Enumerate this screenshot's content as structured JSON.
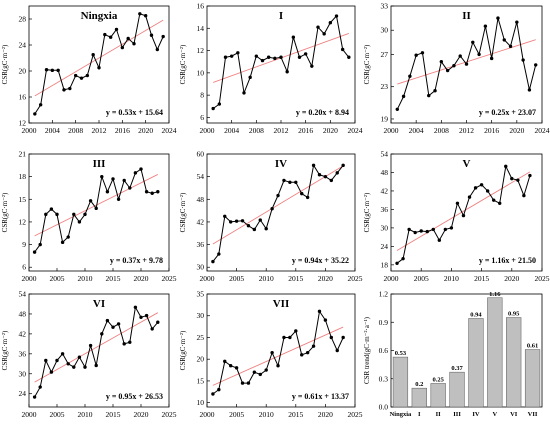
{
  "ylabel": "CSR(gC·m⁻²)",
  "trend_ylabel": "CSR trend(gC·m⁻²·a⁻¹)",
  "colors": {
    "line": "#000000",
    "fit": "#f08080",
    "bar": "#bfbfbf"
  },
  "chart_data": [
    {
      "type": "line",
      "title": "Ningxia",
      "x": [
        2001,
        2002,
        2003,
        2004,
        2005,
        2006,
        2007,
        2008,
        2009,
        2010,
        2011,
        2012,
        2013,
        2014,
        2015,
        2016,
        2017,
        2018,
        2019,
        2020,
        2021,
        2022,
        2023
      ],
      "values": [
        13.4,
        14.8,
        20.2,
        20.1,
        20.1,
        17.1,
        17.3,
        19.3,
        18.9,
        19.3,
        22.5,
        20.5,
        25.6,
        25.2,
        26.4,
        23.6,
        25.0,
        24.2,
        28.8,
        28.5,
        25.5,
        23.3,
        25.3
      ],
      "fit": {
        "slope": 0.53,
        "intercept": 15.64
      },
      "equation": "y = 0.53x + 15.64",
      "xticks": [
        "2000",
        "2004",
        "2008",
        "2012",
        "2016",
        "2020",
        "2024"
      ],
      "xtick_values": [
        2000,
        2004,
        2008,
        2012,
        2016,
        2020,
        2024
      ],
      "yticks": [
        "12",
        "16",
        "20",
        "24",
        "28"
      ],
      "ytick_values": [
        12,
        16,
        20,
        24,
        28
      ],
      "ylim": [
        12,
        30
      ],
      "xlim": [
        2000,
        2024
      ]
    },
    {
      "type": "line",
      "title": "I",
      "x": [
        2001,
        2002,
        2003,
        2004,
        2005,
        2006,
        2007,
        2008,
        2009,
        2010,
        2011,
        2012,
        2013,
        2014,
        2015,
        2016,
        2017,
        2018,
        2019,
        2020,
        2021,
        2022,
        2023
      ],
      "values": [
        6.8,
        7.2,
        11.4,
        11.5,
        11.8,
        8.2,
        9.6,
        11.5,
        11.1,
        11.4,
        11.3,
        11.4,
        10.1,
        13.2,
        11.4,
        11.7,
        10.6,
        14.1,
        13.5,
        14.5,
        15.1,
        12.1,
        11.4
      ],
      "fit": {
        "slope": 0.2,
        "intercept": 8.94
      },
      "equation": "y = 0.20x + 8.94",
      "xticks": [
        "2000",
        "2004",
        "2008",
        "2012",
        "2016",
        "2020",
        "2024"
      ],
      "xtick_values": [
        2000,
        2004,
        2008,
        2012,
        2016,
        2020,
        2024
      ],
      "yticks": [
        "6",
        "8",
        "10",
        "12",
        "14",
        "16"
      ],
      "ytick_values": [
        6,
        8,
        10,
        12,
        14,
        16
      ],
      "ylim": [
        5.5,
        16
      ],
      "xlim": [
        2000,
        2024
      ]
    },
    {
      "type": "line",
      "title": "II",
      "x": [
        2001,
        2002,
        2003,
        2004,
        2005,
        2006,
        2007,
        2008,
        2009,
        2010,
        2011,
        2012,
        2013,
        2014,
        2015,
        2016,
        2017,
        2018,
        2019,
        2020,
        2021,
        2022,
        2023
      ],
      "values": [
        20.2,
        21.8,
        24.3,
        26.9,
        27.2,
        21.9,
        22.5,
        26.1,
        25.0,
        25.6,
        26.8,
        25.8,
        28.5,
        27.0,
        30.5,
        26.5,
        31.5,
        28.8,
        28.0,
        31.0,
        26.3,
        22.6,
        25.7
      ],
      "fit": {
        "slope": 0.25,
        "intercept": 23.07
      },
      "equation": "y = 0.25x + 23.07",
      "xticks": [
        "2000",
        "2004",
        "2008",
        "2012",
        "2016",
        "2020",
        "2024"
      ],
      "xtick_values": [
        2000,
        2004,
        2008,
        2012,
        2016,
        2020,
        2024
      ],
      "yticks": [
        "19",
        "23",
        "27",
        "30",
        "33"
      ],
      "ytick_values": [
        19,
        23,
        27,
        30,
        33
      ],
      "ylim": [
        18.5,
        33
      ],
      "xlim": [
        2000,
        2024
      ]
    },
    {
      "type": "line",
      "title": "III",
      "x": [
        2001,
        2002,
        2003,
        2004,
        2005,
        2006,
        2007,
        2008,
        2009,
        2010,
        2011,
        2012,
        2013,
        2014,
        2015,
        2016,
        2017,
        2018,
        2019,
        2020,
        2021,
        2022,
        2023
      ],
      "values": [
        8.0,
        9.0,
        13.0,
        13.7,
        13.0,
        9.3,
        10.0,
        13.0,
        12.0,
        13.0,
        14.8,
        13.8,
        18.0,
        16.0,
        17.7,
        15.0,
        17.5,
        16.5,
        18.5,
        19.0,
        16.0,
        15.8,
        16.0
      ],
      "fit": {
        "slope": 0.37,
        "intercept": 9.78
      },
      "equation": "y = 0.37x + 9.78",
      "xticks": [
        "2000",
        "2005",
        "2010",
        "2015",
        "2020",
        "2025"
      ],
      "xtick_values": [
        2000,
        2005,
        2010,
        2015,
        2020,
        2025
      ],
      "yticks": [
        "6",
        "9",
        "12",
        "15",
        "18",
        "21"
      ],
      "ytick_values": [
        6,
        9,
        12,
        15,
        18,
        21
      ],
      "ylim": [
        5.5,
        21
      ],
      "xlim": [
        2000,
        2025
      ]
    },
    {
      "type": "line",
      "title": "IV",
      "x": [
        2001,
        2002,
        2003,
        2004,
        2005,
        2006,
        2007,
        2008,
        2009,
        2010,
        2011,
        2012,
        2013,
        2014,
        2015,
        2016,
        2017,
        2018,
        2019,
        2020,
        2021,
        2022,
        2023
      ],
      "values": [
        31.5,
        33.5,
        43.5,
        42.0,
        42.2,
        42.3,
        41.0,
        40.0,
        42.5,
        40.2,
        45.5,
        49.0,
        53.0,
        52.5,
        52.5,
        49.5,
        48.5,
        57.0,
        54.5,
        54.0,
        53.0,
        55.0,
        57.0
      ],
      "fit": {
        "slope": 0.94,
        "intercept": 35.22
      },
      "equation": "y = 0.94x + 35.22",
      "xticks": [
        "2000",
        "2005",
        "2010",
        "2015",
        "2020",
        "2025"
      ],
      "xtick_values": [
        2000,
        2005,
        2010,
        2015,
        2020,
        2025
      ],
      "yticks": [
        "30",
        "36",
        "42",
        "48",
        "54",
        "60"
      ],
      "ytick_values": [
        30,
        36,
        42,
        48,
        54,
        60
      ],
      "ylim": [
        29,
        60
      ],
      "xlim": [
        2000,
        2025
      ]
    },
    {
      "type": "line",
      "title": "V",
      "x": [
        2001,
        2002,
        2003,
        2004,
        2005,
        2006,
        2007,
        2008,
        2009,
        2010,
        2011,
        2012,
        2013,
        2014,
        2015,
        2016,
        2017,
        2018,
        2019,
        2020,
        2021,
        2022,
        2023
      ],
      "values": [
        18.5,
        20.0,
        29.5,
        28.5,
        29.0,
        28.8,
        29.5,
        26.0,
        29.5,
        30.0,
        38.0,
        34.0,
        40.0,
        43.0,
        44.0,
        42.0,
        39.0,
        38.0,
        50.0,
        46.0,
        45.5,
        40.5,
        47.0
      ],
      "fit": {
        "slope": 1.16,
        "intercept": 21.5
      },
      "equation": "y = 1.16x + 21.50",
      "xticks": [
        "2000",
        "2005",
        "2010",
        "2015",
        "2020",
        "2025"
      ],
      "xtick_values": [
        2000,
        2005,
        2010,
        2015,
        2020,
        2025
      ],
      "yticks": [
        "18",
        "24",
        "30",
        "36",
        "42",
        "48",
        "54"
      ],
      "ytick_values": [
        18,
        24,
        30,
        36,
        42,
        48,
        54
      ],
      "ylim": [
        16,
        54
      ],
      "xlim": [
        2000,
        2025
      ]
    },
    {
      "type": "line",
      "title": "VI",
      "x": [
        2001,
        2002,
        2003,
        2004,
        2005,
        2006,
        2007,
        2008,
        2009,
        2010,
        2011,
        2012,
        2013,
        2014,
        2015,
        2016,
        2017,
        2018,
        2019,
        2020,
        2021,
        2022,
        2023
      ],
      "values": [
        23.0,
        26.0,
        34.0,
        30.5,
        34.0,
        36.0,
        33.0,
        32.0,
        35.0,
        32.0,
        38.5,
        32.5,
        42.0,
        46.0,
        44.0,
        45.0,
        39.0,
        39.5,
        50.0,
        47.0,
        47.5,
        43.5,
        45.5
      ],
      "fit": {
        "slope": 0.95,
        "intercept": 26.53
      },
      "equation": "y = 0.95x + 26.53",
      "xticks": [
        "2000",
        "2005",
        "2010",
        "2015",
        "2020",
        "2025"
      ],
      "xtick_values": [
        2000,
        2005,
        2010,
        2015,
        2020,
        2025
      ],
      "yticks": [
        "24",
        "30",
        "36",
        "42",
        "48",
        "54"
      ],
      "ytick_values": [
        24,
        30,
        36,
        42,
        48,
        54
      ],
      "ylim": [
        20,
        54
      ],
      "xlim": [
        2000,
        2025
      ]
    },
    {
      "type": "line",
      "title": "VII",
      "x": [
        2001,
        2002,
        2003,
        2004,
        2005,
        2006,
        2007,
        2008,
        2009,
        2010,
        2011,
        2012,
        2013,
        2014,
        2015,
        2016,
        2017,
        2018,
        2019,
        2020,
        2021,
        2022,
        2023
      ],
      "values": [
        12.0,
        13.0,
        19.5,
        18.5,
        18.0,
        14.5,
        14.5,
        17.0,
        16.5,
        17.5,
        21.5,
        18.5,
        25.0,
        25.0,
        26.5,
        21.0,
        21.5,
        23.0,
        31.0,
        29.0,
        25.0,
        22.0,
        25.0
      ],
      "fit": {
        "slope": 0.61,
        "intercept": 13.37
      },
      "equation": "y = 0.61x + 13.37",
      "xticks": [
        "2000",
        "2005",
        "2010",
        "2015",
        "2020",
        "2025"
      ],
      "xtick_values": [
        2000,
        2005,
        2010,
        2015,
        2020,
        2025
      ],
      "yticks": [
        "10",
        "15",
        "20",
        "25",
        "30",
        "35"
      ],
      "ytick_values": [
        10,
        15,
        20,
        25,
        30,
        35
      ],
      "ylim": [
        9,
        35
      ],
      "xlim": [
        2000,
        2025
      ]
    },
    {
      "type": "bar",
      "categories": [
        "Ningxia",
        "I",
        "II",
        "III",
        "IV",
        "V",
        "VI",
        "VII"
      ],
      "values": [
        0.53,
        0.2,
        0.25,
        0.37,
        0.94,
        1.16,
        0.95,
        0.61
      ],
      "labels": [
        "0.53",
        "0.2",
        "0.25",
        "0.37",
        "0.94",
        "1.16",
        "0.95",
        "0.61"
      ],
      "yticks": [
        "0.0",
        "0.3",
        "0.6",
        "0.9",
        "1.2"
      ],
      "ytick_values": [
        0,
        0.3,
        0.6,
        0.9,
        1.2
      ],
      "ylim": [
        0,
        1.2
      ]
    }
  ]
}
